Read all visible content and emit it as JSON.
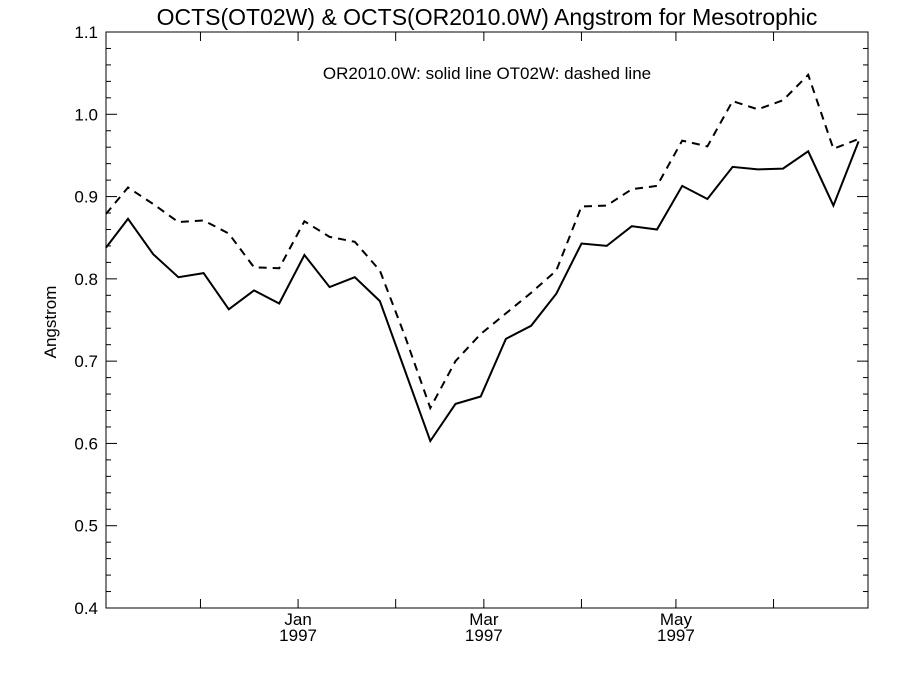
{
  "chart_data": {
    "type": "line",
    "title": "OCTS(OT02W) & OCTS(OR2010.0W)  Angstrom for Mesotrophic",
    "annotation": "OR2010.0W: solid line   OT02W: dashed line",
    "ylabel": "Angstrom",
    "xlabel": "",
    "ylim": [
      0.4,
      1.1
    ],
    "yticks": [
      "0.4",
      "0.5",
      "0.6",
      "0.7",
      "0.8",
      "0.9",
      "1.0",
      "1.1"
    ],
    "xlim": [
      "1996-11-01",
      "1997-07-01"
    ],
    "xticks": [
      {
        "x": "1997-01-01",
        "month": "Jan",
        "year": "1997"
      },
      {
        "x": "1997-03-01",
        "month": "Mar",
        "year": "1997"
      },
      {
        "x": "1997-05-01",
        "month": "May",
        "year": "1997"
      }
    ],
    "series": [
      {
        "name": "OR2010.0W",
        "style": "solid",
        "x": [
          "1996-11-01",
          "1996-11-08",
          "1996-11-16",
          "1996-11-24",
          "1996-12-02",
          "1996-12-10",
          "1996-12-18",
          "1996-12-26",
          "1997-01-03",
          "1997-01-11",
          "1997-01-19",
          "1997-01-27",
          "1997-02-04",
          "1997-02-12",
          "1997-02-20",
          "1997-02-28",
          "1997-03-08",
          "1997-03-16",
          "1997-03-24",
          "1997-04-01",
          "1997-04-09",
          "1997-04-17",
          "1997-04-25",
          "1997-05-03",
          "1997-05-11",
          "1997-05-19",
          "1997-05-27",
          "1997-06-04",
          "1997-06-12",
          "1997-06-20",
          "1997-06-28"
        ],
        "values": [
          0.838,
          0.873,
          0.83,
          0.802,
          0.807,
          0.763,
          0.786,
          0.77,
          0.829,
          0.79,
          0.802,
          0.773,
          0.688,
          0.603,
          0.648,
          0.657,
          0.727,
          0.743,
          0.782,
          0.843,
          0.84,
          0.864,
          0.86,
          0.913,
          0.897,
          0.936,
          0.933,
          0.934,
          0.955,
          0.889,
          0.967
        ]
      },
      {
        "name": "OT02W",
        "style": "dashed",
        "x": [
          "1996-11-01",
          "1996-11-08",
          "1996-11-16",
          "1996-11-24",
          "1996-12-02",
          "1996-12-10",
          "1996-12-18",
          "1996-12-26",
          "1997-01-03",
          "1997-01-11",
          "1997-01-19",
          "1997-01-27",
          "1997-02-04",
          "1997-02-12",
          "1997-02-20",
          "1997-02-28",
          "1997-03-08",
          "1997-03-16",
          "1997-03-24",
          "1997-04-01",
          "1997-04-09",
          "1997-04-17",
          "1997-04-25",
          "1997-05-03",
          "1997-05-11",
          "1997-05-19",
          "1997-05-27",
          "1997-06-04",
          "1997-06-12",
          "1997-06-20",
          "1997-06-28"
        ],
        "values": [
          0.879,
          0.911,
          0.891,
          0.869,
          0.871,
          0.855,
          0.814,
          0.813,
          0.87,
          0.851,
          0.845,
          0.81,
          0.73,
          0.643,
          0.7,
          0.733,
          0.758,
          0.783,
          0.81,
          0.888,
          0.889,
          0.909,
          0.913,
          0.968,
          0.961,
          1.016,
          1.006,
          1.017,
          1.048,
          0.958,
          0.97
        ]
      }
    ],
    "grid": false,
    "line_color": "#000000"
  }
}
